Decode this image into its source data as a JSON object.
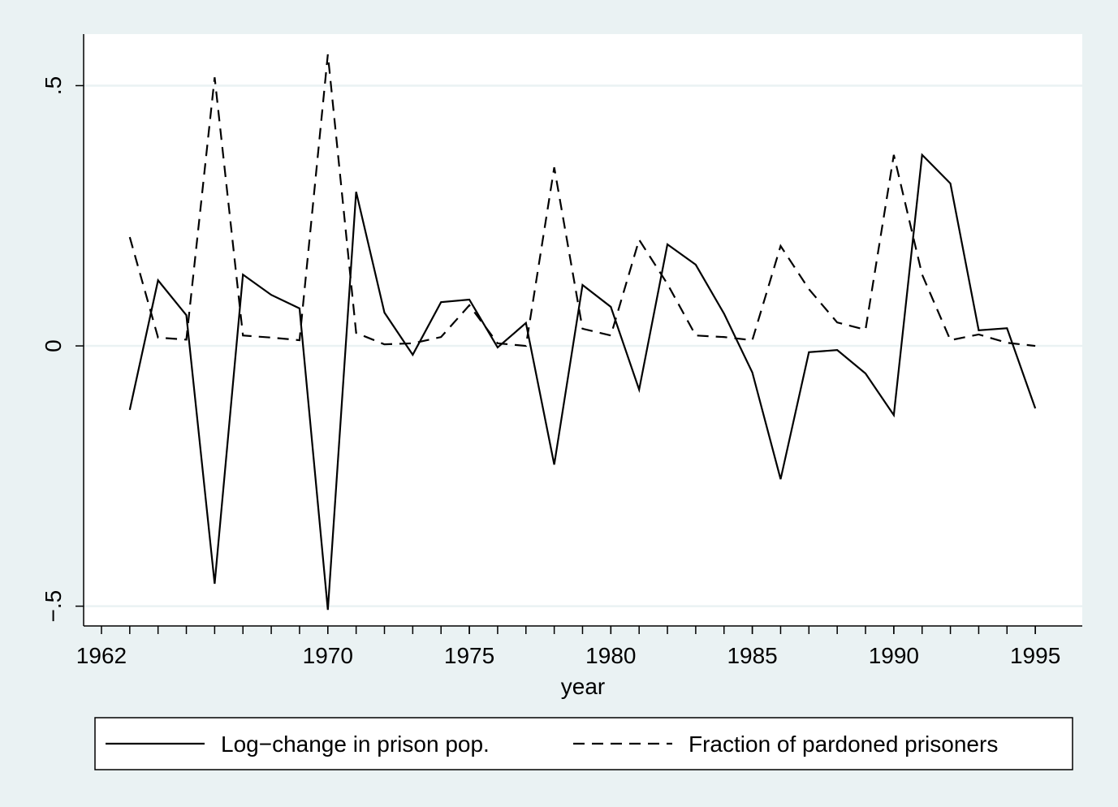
{
  "chart_data": {
    "type": "line",
    "x_label": "year",
    "x": [
      1963,
      1964,
      1965,
      1966,
      1967,
      1968,
      1969,
      1970,
      1971,
      1972,
      1973,
      1974,
      1975,
      1976,
      1977,
      1978,
      1979,
      1980,
      1981,
      1982,
      1983,
      1984,
      1985,
      1986,
      1987,
      1988,
      1989,
      1990,
      1991,
      1992,
      1993,
      1994,
      1995
    ],
    "series": [
      {
        "name": "Log−change in prison pop.",
        "color": "#000000",
        "style": "solid",
        "values": [
          -0.123,
          0.126,
          0.059,
          -0.457,
          0.137,
          0.098,
          0.072,
          -0.507,
          0.296,
          0.064,
          -0.017,
          0.084,
          0.089,
          -0.003,
          0.044,
          -0.228,
          0.117,
          0.075,
          -0.084,
          0.195,
          0.156,
          0.062,
          -0.051,
          -0.256,
          -0.012,
          -0.008,
          -0.053,
          -0.133,
          0.367,
          0.312,
          0.03,
          0.034,
          -0.12
        ]
      },
      {
        "name": "Fraction of pardoned prisoners",
        "color": "#000000",
        "style": "dashed",
        "values": [
          0.209,
          0.016,
          0.012,
          0.516,
          0.02,
          0.016,
          0.011,
          0.56,
          0.025,
          0.003,
          0.005,
          0.017,
          0.078,
          0.005,
          0.0,
          0.343,
          0.033,
          0.02,
          0.204,
          0.119,
          0.02,
          0.017,
          0.011,
          0.192,
          0.109,
          0.045,
          0.031,
          0.367,
          0.137,
          0.011,
          0.022,
          0.006,
          0.0
        ]
      }
    ],
    "xlim": [
      1961.37,
      1996.66
    ],
    "xticks": [
      1962,
      1970,
      1975,
      1980,
      1985,
      1990,
      1995
    ],
    "ylim": [
      -0.538,
      0.599
    ],
    "yticks": [
      {
        "value": -0.5,
        "label": "−.5"
      },
      0,
      {
        "value": 0.5,
        "label": ".5"
      }
    ],
    "grid": true,
    "legend": "bottom"
  }
}
